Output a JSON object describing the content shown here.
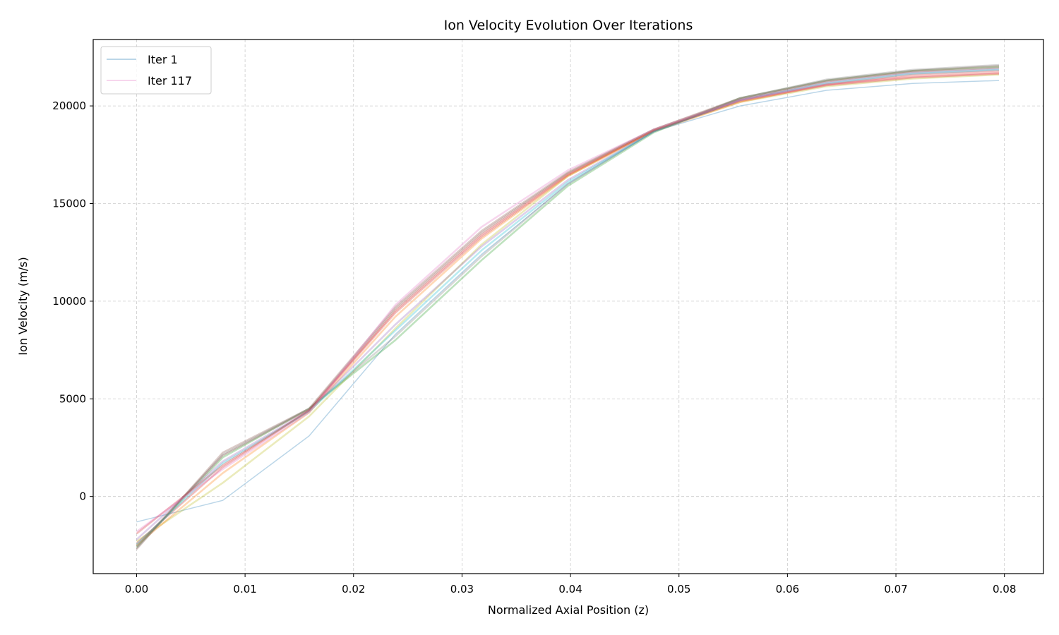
{
  "chart_data": {
    "type": "line",
    "title": "Ion Velocity Evolution Over Iterations",
    "xlabel": "Normalized Axial Position (z)",
    "ylabel": "Ion Velocity (m/s)",
    "xlim": [
      -0.004,
      0.0836
    ],
    "ylim": [
      -3950,
      23400
    ],
    "x_ticks": [
      0.0,
      0.01,
      0.02,
      0.03,
      0.04,
      0.05,
      0.06,
      0.07,
      0.08
    ],
    "x_tick_labels": [
      "0.00",
      "0.01",
      "0.02",
      "0.03",
      "0.04",
      "0.05",
      "0.06",
      "0.07",
      "0.08"
    ],
    "y_ticks": [
      0,
      5000,
      10000,
      15000,
      20000
    ],
    "y_tick_labels": [
      "0",
      "5000",
      "10000",
      "15000",
      "20000"
    ],
    "grid": true,
    "legend_position": "upper-left",
    "x": [
      0.0,
      0.00795,
      0.0159,
      0.02385,
      0.0318,
      0.03975,
      0.0477,
      0.05565,
      0.0636,
      0.07155,
      0.0795
    ],
    "series": [
      {
        "name": "Iter 1",
        "color": "#1f77b4",
        "opacity": 0.3,
        "values": [
          -1300,
          -200,
          3100,
          8300,
          12400,
          16000,
          18700,
          20000,
          20800,
          21150,
          21300
        ]
      },
      {
        "name": "",
        "color": "#bcbd22",
        "opacity": 0.3,
        "values": [
          -2300,
          700,
          4100,
          8600,
          12900,
          16400,
          18750,
          20200,
          21000,
          21400,
          21600
        ]
      },
      {
        "name": "",
        "color": "#ff7f0e",
        "opacity": 0.3,
        "values": [
          -2500,
          1200,
          4300,
          9200,
          13200,
          16400,
          18700,
          20200,
          21100,
          21500,
          21700
        ]
      },
      {
        "name": "",
        "color": "#d62728",
        "opacity": 0.3,
        "values": [
          -2400,
          1500,
          4400,
          9500,
          13400,
          16500,
          18750,
          20300,
          21100,
          21600,
          21800
        ]
      },
      {
        "name": "",
        "color": "#2ca02c",
        "opacity": 0.3,
        "values": [
          -2600,
          2000,
          4500,
          8000,
          12100,
          15900,
          18650,
          20400,
          21300,
          21800,
          22000
        ]
      },
      {
        "name": "",
        "color": "#8c564b",
        "opacity": 0.3,
        "values": [
          -2700,
          2250,
          4500,
          9700,
          13600,
          16600,
          18800,
          20400,
          21300,
          21800,
          22050
        ]
      },
      {
        "name": "",
        "color": "#9467bd",
        "opacity": 0.3,
        "values": [
          -2200,
          1800,
          4400,
          8800,
          12800,
          16200,
          18700,
          20300,
          21200,
          21700,
          21900
        ]
      },
      {
        "name": "",
        "color": "#7f7f7f",
        "opacity": 0.3,
        "values": [
          -2650,
          2150,
          4500,
          8200,
          12300,
          16000,
          18700,
          20400,
          21350,
          21850,
          22100
        ]
      },
      {
        "name": "",
        "color": "#17becf",
        "opacity": 0.3,
        "values": [
          -2450,
          1700,
          4350,
          8500,
          12600,
          16100,
          18700,
          20300,
          21150,
          21650,
          21850
        ]
      },
      {
        "name": "",
        "color": "#d62728",
        "opacity": 0.3,
        "values": [
          -1900,
          1600,
          4400,
          9400,
          13300,
          16450,
          18750,
          20250,
          21050,
          21450,
          21650
        ]
      },
      {
        "name": "",
        "color": "#8c564b",
        "opacity": 0.3,
        "values": [
          -2550,
          2100,
          4450,
          9600,
          13500,
          16550,
          18800,
          20350,
          21250,
          21750,
          21950
        ]
      },
      {
        "name": "Iter 117",
        "color": "#e377c2",
        "opacity": 0.3,
        "values": [
          -1800,
          1400,
          4300,
          9800,
          13800,
          16700,
          18800,
          20300,
          21100,
          21500,
          21700
        ]
      }
    ]
  }
}
